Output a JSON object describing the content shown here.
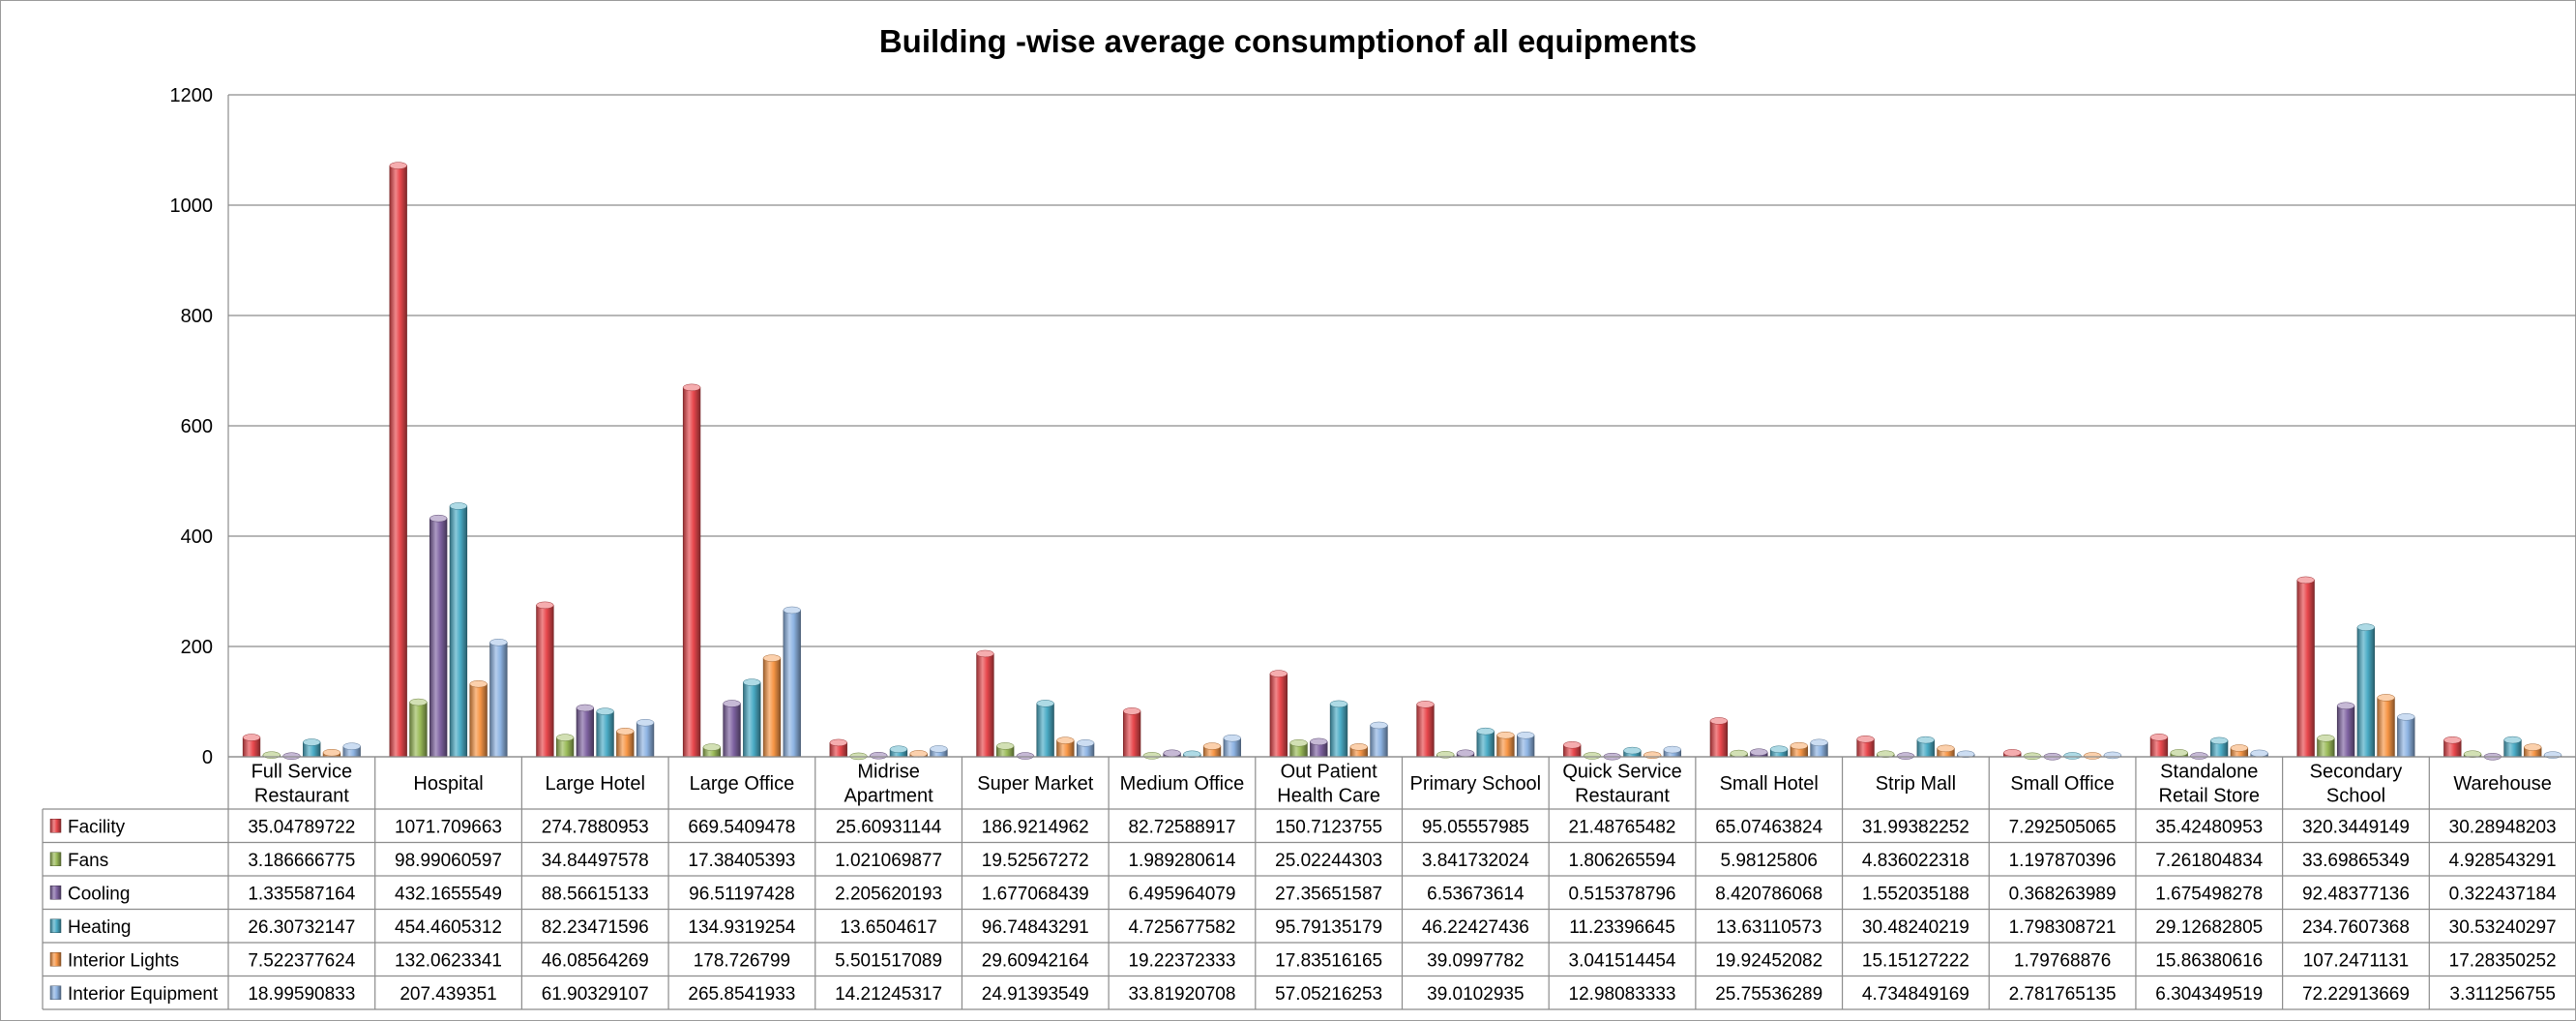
{
  "chart_data": {
    "type": "bar",
    "title": "Building -wise average consumptionof all equipments",
    "xlabel": "",
    "ylabel": "",
    "ylim": [
      0,
      1200
    ],
    "yticks": [
      0,
      200,
      400,
      600,
      800,
      1000,
      1200
    ],
    "grid": true,
    "legend": "data table rows (left)",
    "style": "3d cylinder bars with data table",
    "categories": [
      "Full Service Restaurant",
      "Hospital",
      "Large Hotel",
      "Large Office",
      "Midrise Apartment",
      "Super Market",
      "Medium Office",
      "Out Patient Health Care",
      "Primary School",
      "Quick Service Restaurant",
      "Small Hotel",
      "Strip Mall",
      "Small Office",
      "Standalone Retail Store",
      "Secondary School",
      "Warehouse"
    ],
    "category_lines": [
      [
        "Full Service",
        "Restaurant"
      ],
      [
        "Hospital"
      ],
      [
        "Large Hotel"
      ],
      [
        "Large Office"
      ],
      [
        "Midrise",
        "Apartment"
      ],
      [
        "Super Market"
      ],
      [
        "Medium Office"
      ],
      [
        "Out Patient",
        "Health Care"
      ],
      [
        "Primary School"
      ],
      [
        "Quick Service",
        "Restaurant"
      ],
      [
        "Small Hotel"
      ],
      [
        "Strip Mall"
      ],
      [
        "Small Office"
      ],
      [
        "Standalone",
        "Retail Store"
      ],
      [
        "Secondary",
        "School"
      ],
      [
        "Warehouse"
      ]
    ],
    "series": [
      {
        "name": "Facility",
        "color": "#e8484d",
        "values": [
          35.04789722,
          1071.709663,
          274.7880953,
          669.5409478,
          25.60931144,
          186.9214962,
          82.72588917,
          150.7123755,
          95.05557985,
          21.48765482,
          65.07463824,
          31.99382252,
          7.292505065,
          35.42480953,
          320.3449149,
          30.28948203
        ],
        "labels": [
          "35.04789722",
          "1071.709663",
          "274.7880953",
          "669.5409478",
          "25.60931144",
          "186.9214962",
          "82.72588917",
          "150.7123755",
          "95.05557985",
          "21.48765482",
          "65.07463824",
          "31.99382252",
          "7.292505065",
          "35.42480953",
          "320.3449149",
          "30.28948203"
        ]
      },
      {
        "name": "Fans",
        "color": "#9bbb59",
        "values": [
          3.186666775,
          98.99060597,
          34.84497578,
          17.38405393,
          1.021069877,
          19.52567272,
          1.989280614,
          25.02244303,
          3.841732024,
          1.806265594,
          5.98125806,
          4.836022318,
          1.197870396,
          7.261804834,
          33.69865349,
          4.928543291
        ],
        "labels": [
          "3.186666775",
          "98.99060597",
          "34.84497578",
          "17.38405393",
          "1.021069877",
          "19.52567272",
          "1.989280614",
          "25.02244303",
          "3.841732024",
          "1.806265594",
          "5.98125806",
          "4.836022318",
          "1.197870396",
          "7.261804834",
          "33.69865349",
          "4.928543291"
        ]
      },
      {
        "name": "Cooling",
        "color": "#8064a2",
        "values": [
          1.335587164,
          432.1655549,
          88.56615133,
          96.51197428,
          2.205620193,
          1.677068439,
          6.495964079,
          27.35651587,
          6.53673614,
          0.515378796,
          8.420786068,
          1.552035188,
          0.368263989,
          1.675498278,
          92.48377136,
          0.322437184
        ],
        "labels": [
          "1.335587164",
          "432.1655549",
          "88.56615133",
          "96.51197428",
          "2.205620193",
          "1.677068439",
          "6.495964079",
          "27.35651587",
          "6.53673614",
          "0.515378796",
          "8.420786068",
          "1.552035188",
          "0.368263989",
          "1.675498278",
          "92.48377136",
          "0.322437184"
        ]
      },
      {
        "name": "Heating",
        "color": "#4bacc6",
        "values": [
          26.30732147,
          454.4605312,
          82.23471596,
          134.9319254,
          13.6504617,
          96.74843291,
          4.725677582,
          95.79135179,
          46.22427436,
          11.23396645,
          13.63110573,
          30.48240219,
          1.798308721,
          29.12682805,
          234.7607368,
          30.53240297
        ],
        "labels": [
          "26.30732147",
          "454.4605312",
          "82.23471596",
          "134.9319254",
          "13.6504617",
          "96.74843291",
          "4.725677582",
          "95.79135179",
          "46.22427436",
          "11.23396645",
          "13.63110573",
          "30.48240219",
          "1.798308721",
          "29.12682805",
          "234.7607368",
          "30.53240297"
        ]
      },
      {
        "name": "Interior Lights",
        "color": "#f79646",
        "values": [
          7.522377624,
          132.0623341,
          46.08564269,
          178.726799,
          5.501517089,
          29.60942164,
          19.22372333,
          17.83516165,
          39.0997782,
          3.041514454,
          19.92452082,
          15.15127222,
          1.79768876,
          15.86380616,
          107.2471131,
          17.28350252
        ],
        "labels": [
          "7.522377624",
          "132.0623341",
          "46.08564269",
          "178.726799",
          "5.501517089",
          "29.60942164",
          "19.22372333",
          "17.83516165",
          "39.0997782",
          "3.041514454",
          "19.92452082",
          "15.15127222",
          "1.79768876",
          "15.86380616",
          "107.2471131",
          "17.28350252"
        ]
      },
      {
        "name": "Interior Equipment",
        "color": "#8eb4e3",
        "values": [
          18.99590833,
          207.439351,
          61.90329107,
          265.8541933,
          14.21245317,
          24.91393549,
          33.81920708,
          57.05216253,
          39.0102935,
          12.98083333,
          25.75536289,
          4.734849169,
          2.781765135,
          6.304349519,
          72.22913669,
          3.311256755
        ],
        "labels": [
          "18.99590833",
          "207.439351",
          "61.90329107",
          "265.8541933",
          "14.21245317",
          "24.91393549",
          "33.81920708",
          "57.05216253",
          "39.0102935",
          "12.98083333",
          "25.75536289",
          "4.734849169",
          "2.781765135",
          "6.304349519",
          "72.22913669",
          "3.311256755"
        ]
      }
    ]
  }
}
